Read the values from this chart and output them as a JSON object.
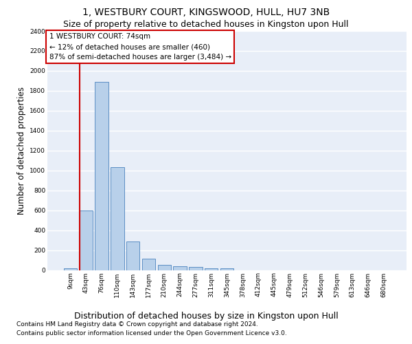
{
  "title": "1, WESTBURY COURT, KINGSWOOD, HULL, HU7 3NB",
  "subtitle": "Size of property relative to detached houses in Kingston upon Hull",
  "xlabel": "Distribution of detached houses by size in Kingston upon Hull",
  "ylabel": "Number of detached properties",
  "categories": [
    "9sqm",
    "43sqm",
    "76sqm",
    "110sqm",
    "143sqm",
    "177sqm",
    "210sqm",
    "244sqm",
    "277sqm",
    "311sqm",
    "345sqm",
    "378sqm",
    "412sqm",
    "445sqm",
    "479sqm",
    "512sqm",
    "546sqm",
    "579sqm",
    "613sqm",
    "646sqm",
    "680sqm"
  ],
  "values": [
    20,
    600,
    1890,
    1030,
    290,
    115,
    50,
    40,
    30,
    20,
    20,
    0,
    0,
    0,
    0,
    0,
    0,
    0,
    0,
    0,
    0
  ],
  "bar_color": "#b8d0ea",
  "bar_edge_color": "#5b8ec4",
  "property_line_bin": 1,
  "property_line_color": "#cc0000",
  "annotation_line1": "1 WESTBURY COURT: 74sqm",
  "annotation_line2": "← 12% of detached houses are smaller (460)",
  "annotation_line3": "87% of semi-detached houses are larger (3,484) →",
  "annotation_box_edgecolor": "#cc0000",
  "ylim": [
    0,
    2400
  ],
  "yticks": [
    0,
    200,
    400,
    600,
    800,
    1000,
    1200,
    1400,
    1600,
    1800,
    2000,
    2200,
    2400
  ],
  "footer_line1": "Contains HM Land Registry data © Crown copyright and database right 2024.",
  "footer_line2": "Contains public sector information licensed under the Open Government Licence v3.0.",
  "plot_bg_color": "#e8eef8",
  "grid_color": "#ffffff",
  "title_fontsize": 10,
  "subtitle_fontsize": 9,
  "tick_fontsize": 6.5,
  "ylabel_fontsize": 8.5,
  "xlabel_fontsize": 9,
  "footer_fontsize": 6.5
}
